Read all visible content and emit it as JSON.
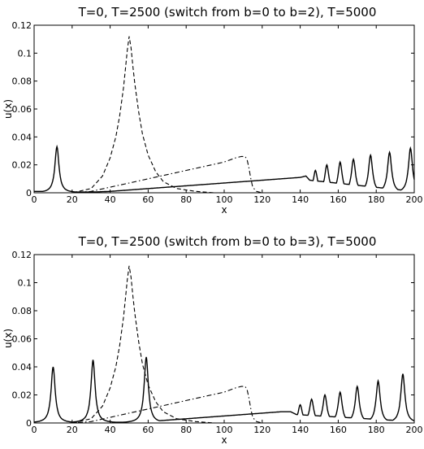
{
  "chart_data": [
    {
      "type": "line",
      "title": "T=0, T=2500 (switch from b=0 to b=2), T=5000",
      "xlabel": "x",
      "ylabel": "u(x)",
      "xlim": [
        0,
        200
      ],
      "ylim": [
        0,
        0.12
      ],
      "xticks": [
        "0",
        "20",
        "40",
        "60",
        "80",
        "100",
        "120",
        "140",
        "160",
        "180",
        "200"
      ],
      "yticks": [
        "0",
        "0.02",
        "0.04",
        "0.06",
        "0.08",
        "0.1",
        "0.12"
      ],
      "series": [
        {
          "style": "dashed",
          "x": [
            0,
            20,
            30,
            36,
            40,
            43,
            45,
            47,
            48,
            49,
            50,
            51,
            52,
            53,
            55,
            57,
            60,
            64,
            68,
            75,
            85,
            95,
            110,
            120,
            200
          ],
          "y": [
            0,
            0,
            0.003,
            0.012,
            0.025,
            0.04,
            0.055,
            0.075,
            0.088,
            0.102,
            0.112,
            0.104,
            0.09,
            0.078,
            0.058,
            0.042,
            0.027,
            0.015,
            0.008,
            0.003,
            0.001,
            0,
            0,
            0,
            0
          ]
        },
        {
          "style": "dash-dot",
          "x": [
            0,
            20,
            30,
            40,
            50,
            60,
            70,
            80,
            90,
            100,
            106,
            109,
            111,
            112,
            113,
            114,
            115,
            117,
            120,
            200
          ],
          "y": [
            0,
            0,
            0.001,
            0.004,
            0.007,
            0.01,
            0.013,
            0.016,
            0.019,
            0.022,
            0.025,
            0.026,
            0.026,
            0.024,
            0.018,
            0.01,
            0.004,
            0.001,
            0,
            0
          ]
        },
        {
          "style": "solid",
          "peaks": [
            {
              "x": 12,
              "y": 0.033
            },
            {
              "x": 148,
              "y": 0.016
            },
            {
              "x": 154,
              "y": 0.02
            },
            {
              "x": 161,
              "y": 0.022
            },
            {
              "x": 168,
              "y": 0.024
            },
            {
              "x": 177,
              "y": 0.027
            },
            {
              "x": 187,
              "y": 0.029
            },
            {
              "x": 198,
              "y": 0.032
            }
          ],
          "x": [
            0,
            10,
            20,
            30,
            40,
            50,
            60,
            70,
            80,
            90,
            100,
            110,
            120,
            130,
            140,
            143,
            145,
            200
          ],
          "y": [
            0.001,
            0.001,
            0.0005,
            0.0005,
            0.001,
            0.002,
            0.003,
            0.004,
            0.005,
            0.006,
            0.007,
            0.008,
            0.009,
            0.01,
            0.011,
            0.012,
            0.009,
            0.001
          ]
        }
      ]
    },
    {
      "type": "line",
      "title": "T=0, T=2500 (switch from b=0 to b=3), T=5000",
      "xlabel": "x",
      "ylabel": "u(x)",
      "xlim": [
        0,
        200
      ],
      "ylim": [
        0,
        0.12
      ],
      "xticks": [
        "0",
        "20",
        "40",
        "60",
        "80",
        "100",
        "120",
        "140",
        "160",
        "180",
        "200"
      ],
      "yticks": [
        "0",
        "0.02",
        "0.04",
        "0.06",
        "0.08",
        "0.1",
        "0.12"
      ],
      "series": [
        {
          "style": "dashed",
          "x": [
            0,
            20,
            30,
            36,
            40,
            43,
            45,
            47,
            48,
            49,
            50,
            51,
            52,
            53,
            55,
            57,
            60,
            64,
            68,
            75,
            85,
            95,
            110,
            120,
            200
          ],
          "y": [
            0,
            0,
            0.003,
            0.012,
            0.025,
            0.04,
            0.055,
            0.075,
            0.088,
            0.102,
            0.112,
            0.104,
            0.09,
            0.078,
            0.058,
            0.042,
            0.027,
            0.015,
            0.008,
            0.003,
            0.001,
            0,
            0,
            0,
            0
          ]
        },
        {
          "style": "dash-dot",
          "x": [
            0,
            20,
            30,
            40,
            50,
            60,
            70,
            80,
            90,
            100,
            106,
            109,
            111,
            112,
            113,
            114,
            115,
            117,
            120,
            200
          ],
          "y": [
            0,
            0,
            0.001,
            0.004,
            0.007,
            0.01,
            0.013,
            0.016,
            0.019,
            0.022,
            0.025,
            0.026,
            0.026,
            0.024,
            0.018,
            0.01,
            0.004,
            0.001,
            0,
            0
          ]
        },
        {
          "style": "solid",
          "peaks": [
            {
              "x": 10,
              "y": 0.04
            },
            {
              "x": 31,
              "y": 0.045
            },
            {
              "x": 59,
              "y": 0.047
            },
            {
              "x": 140,
              "y": 0.013
            },
            {
              "x": 146,
              "y": 0.017
            },
            {
              "x": 153,
              "y": 0.02
            },
            {
              "x": 161,
              "y": 0.022
            },
            {
              "x": 170,
              "y": 0.026
            },
            {
              "x": 181,
              "y": 0.03
            },
            {
              "x": 194,
              "y": 0.035
            }
          ],
          "x": [
            0,
            20,
            40,
            50,
            60,
            70,
            80,
            90,
            100,
            110,
            120,
            130,
            135,
            138,
            200
          ],
          "y": [
            0.0005,
            0.0005,
            0.0005,
            0.0005,
            0.001,
            0.002,
            0.003,
            0.004,
            0.005,
            0.006,
            0.007,
            0.008,
            0.008,
            0.006,
            0.001
          ]
        }
      ]
    }
  ]
}
